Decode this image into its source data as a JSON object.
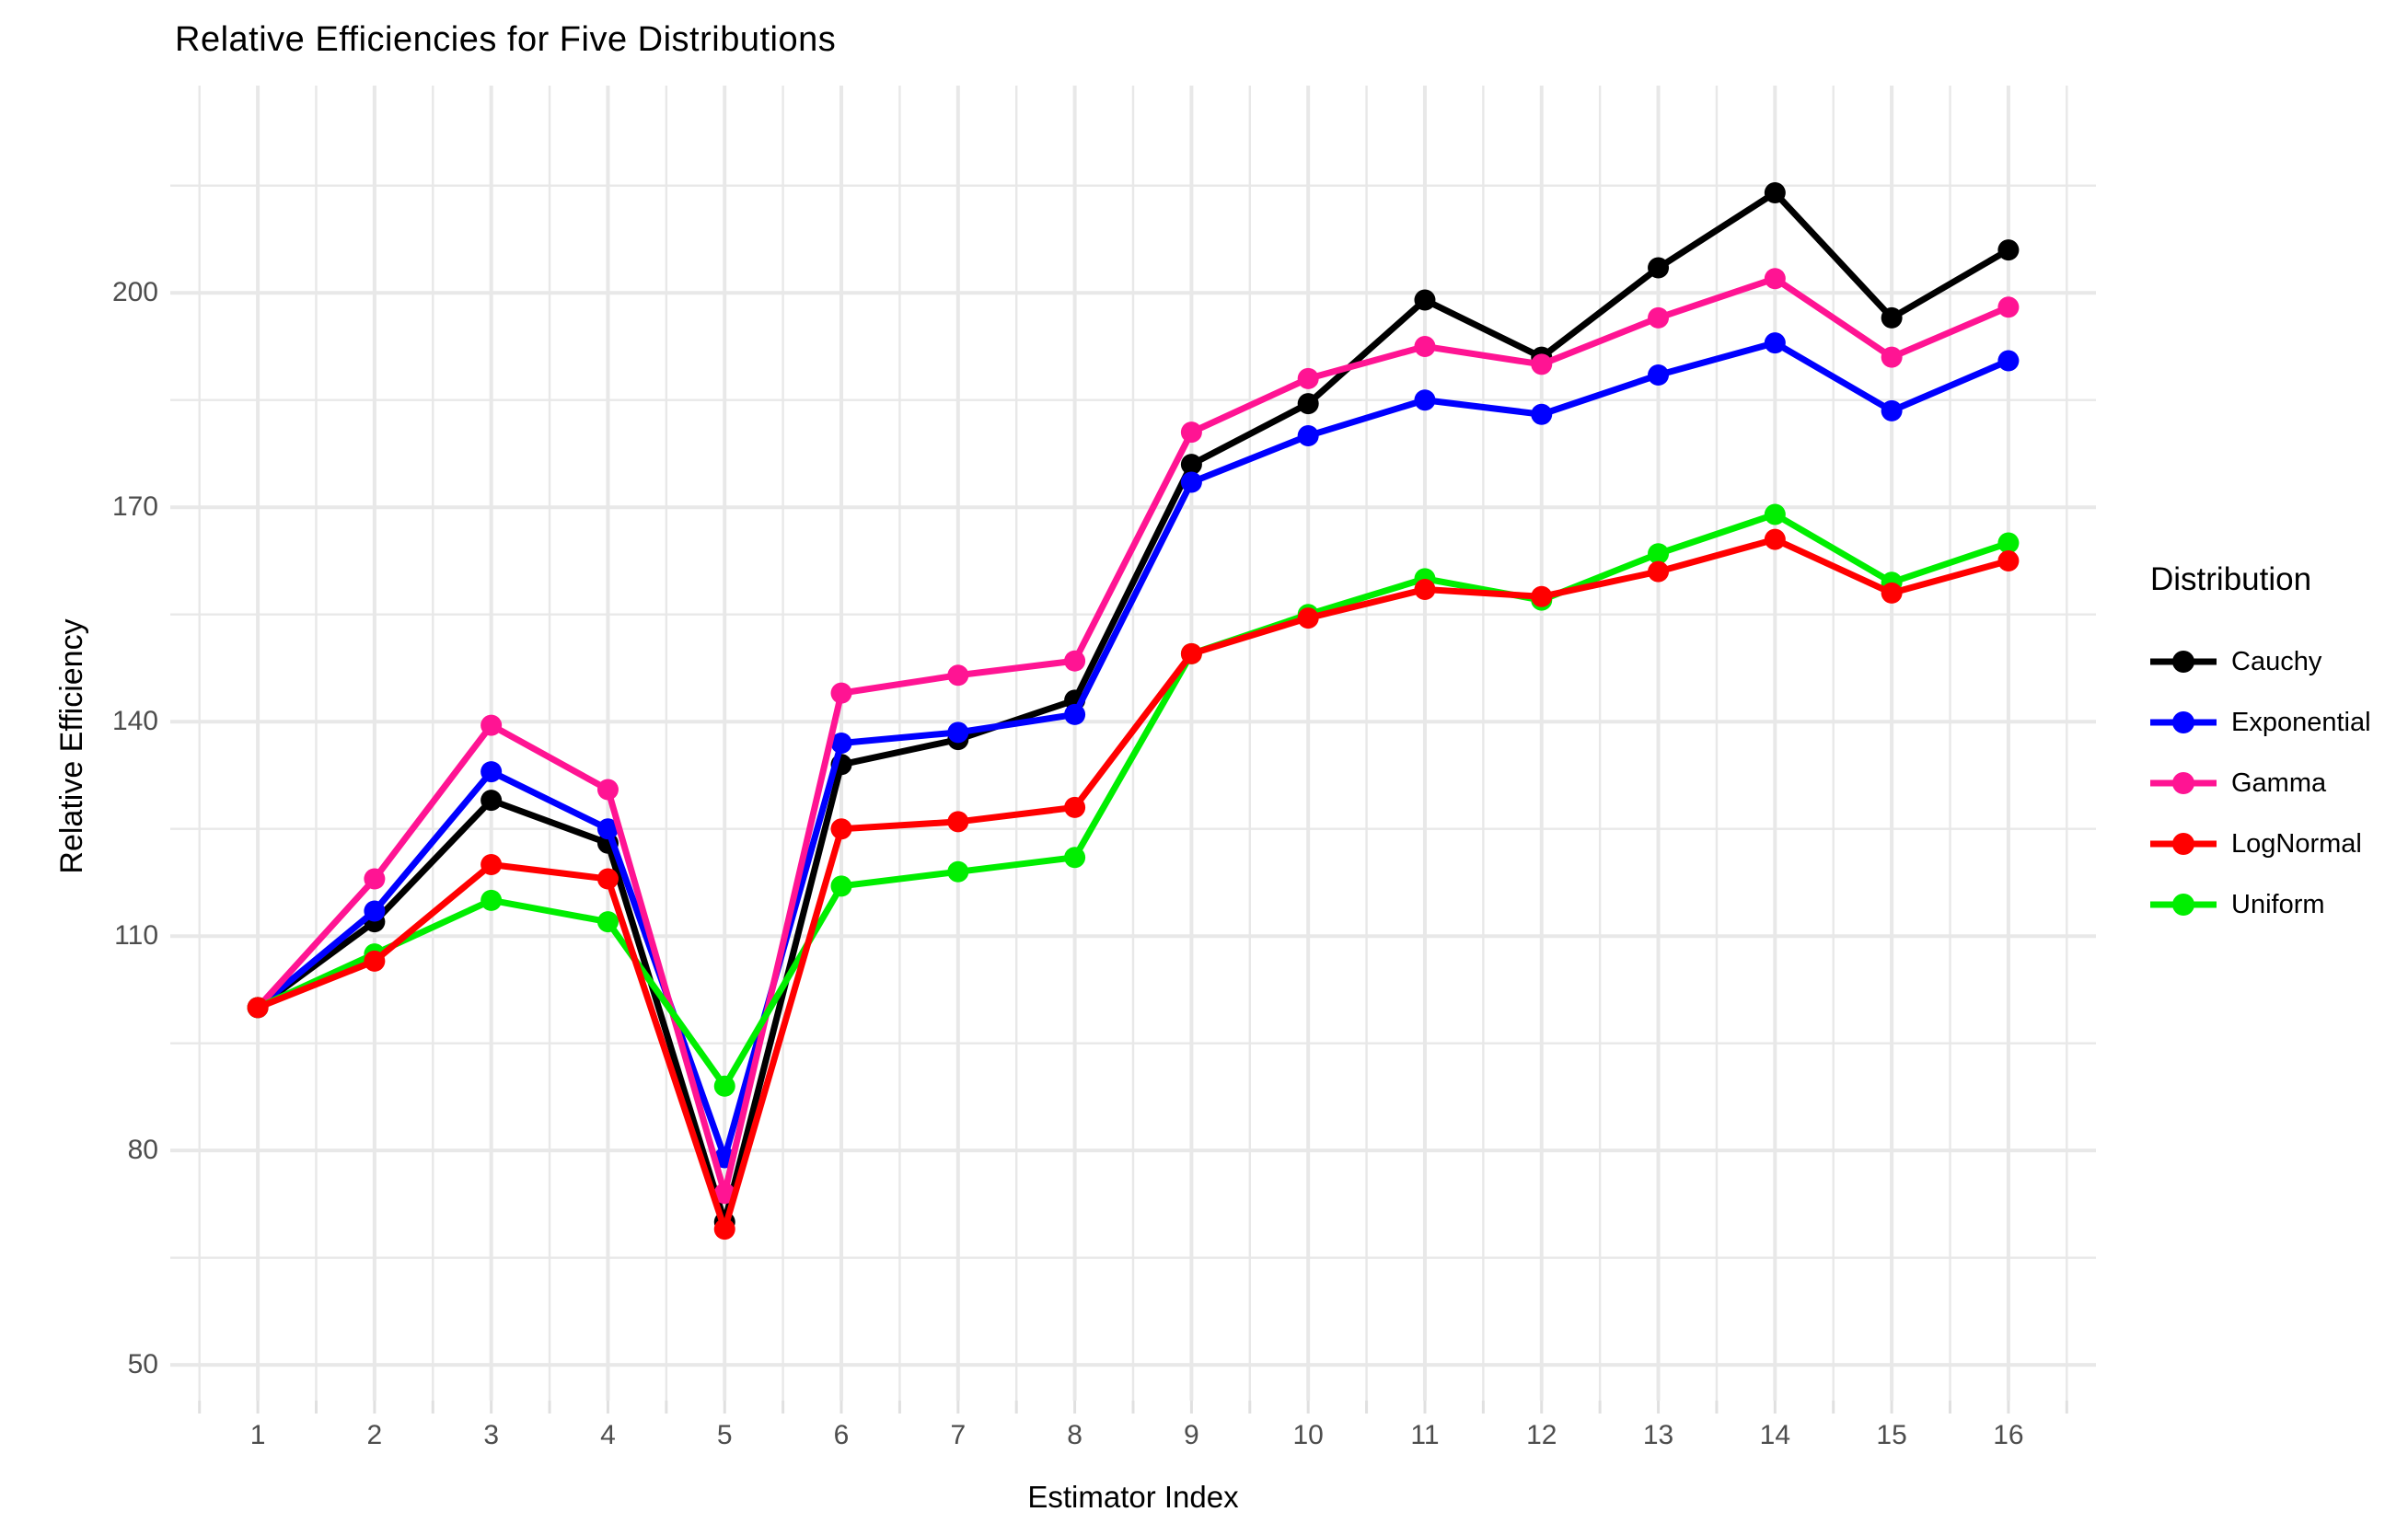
{
  "title": "Relative Efficiencies for Five Distributions",
  "x_axis": {
    "label": "Estimator Index",
    "ticks": [
      "1",
      "2",
      "3",
      "4",
      "5",
      "6",
      "7",
      "8",
      "9",
      "10",
      "11",
      "12",
      "13",
      "14",
      "15",
      "16"
    ]
  },
  "y_axis": {
    "label": "Relative Efficiency",
    "ticks": [
      "50",
      "80",
      "110",
      "140",
      "170",
      "200"
    ]
  },
  "legend": {
    "title": "Distribution",
    "items": [
      {
        "label": "Cauchy",
        "color": "#000000"
      },
      {
        "label": "Exponential",
        "color": "#0000FF"
      },
      {
        "label": "Gamma",
        "color": "#FF1493"
      },
      {
        "label": "LogNormal",
        "color": "#FF0000"
      },
      {
        "label": "Uniform",
        "color": "#00EE00"
      }
    ]
  },
  "colors": {
    "background": "#ffffff",
    "gridline": "#E8E8E8",
    "axis_tick_mark": "#E0E0E0",
    "tick_text": "#4d4d4d"
  },
  "chart_data": {
    "type": "line",
    "title": "Relative Efficiencies for Five Distributions",
    "xlabel": "Estimator Index",
    "ylabel": "Relative Efficiency",
    "x": [
      1,
      2,
      3,
      4,
      5,
      6,
      7,
      8,
      9,
      10,
      11,
      12,
      13,
      14,
      15,
      16
    ],
    "series": [
      {
        "name": "Cauchy",
        "color": "#000000",
        "values": [
          100,
          112,
          129,
          123,
          70,
          134,
          137.5,
          143,
          176,
          184.5,
          199,
          191,
          203.5,
          214,
          196.5,
          206
        ]
      },
      {
        "name": "Exponential",
        "color": "#0000FF",
        "values": [
          100,
          113.5,
          133,
          125,
          79,
          137,
          138.5,
          141,
          173.5,
          180,
          185,
          183,
          188.5,
          193,
          183.5,
          190.5
        ]
      },
      {
        "name": "Gamma",
        "color": "#FF1493",
        "values": [
          100,
          118,
          139.5,
          130.5,
          74,
          144,
          146.5,
          148.5,
          180.5,
          188,
          192.5,
          190,
          196.5,
          202,
          191,
          198
        ]
      },
      {
        "name": "LogNormal",
        "color": "#FF0000",
        "values": [
          100,
          106.5,
          120,
          118,
          69,
          125,
          126,
          128,
          149.5,
          154.5,
          158.5,
          157.5,
          161,
          165.5,
          158,
          162.5
        ]
      },
      {
        "name": "Uniform",
        "color": "#00EE00",
        "values": [
          100,
          107.5,
          115,
          112,
          89,
          117,
          119,
          121,
          149.5,
          155,
          160,
          157,
          163.5,
          169,
          159.5,
          165
        ]
      }
    ],
    "draw_order": [
      "Cauchy",
      "Exponential",
      "Gamma",
      "Uniform",
      "LogNormal"
    ],
    "xlim": [
      0.25,
      16.75
    ],
    "ylim": [
      45,
      229
    ],
    "yticks": [
      50,
      80,
      110,
      140,
      170,
      200
    ],
    "y_minor_grid": [
      65,
      95,
      125,
      155,
      185,
      215
    ],
    "x_major_grid": [
      1,
      2,
      3,
      4,
      5,
      6,
      7,
      8,
      9,
      10,
      11,
      12,
      13,
      14,
      15,
      16
    ],
    "x_minor_grid": [
      0.5,
      1.5,
      2.5,
      3.5,
      4.5,
      5.5,
      6.5,
      7.5,
      8.5,
      9.5,
      10.5,
      11.5,
      12.5,
      13.5,
      14.5,
      15.5,
      16.5
    ],
    "grid": true,
    "legend_position": "right"
  }
}
